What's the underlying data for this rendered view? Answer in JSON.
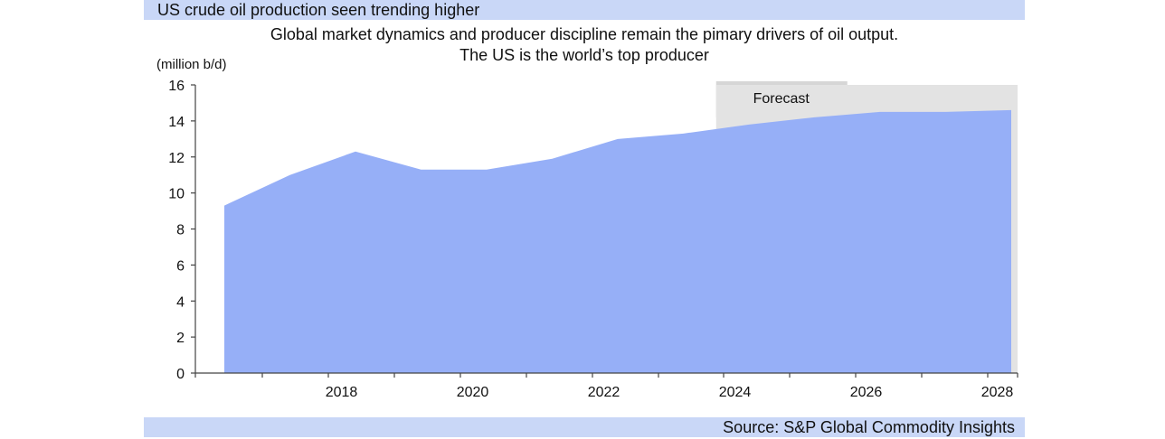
{
  "header": {
    "title": "US crude oil production seen trending higher",
    "subtitle_line1": "Global market dynamics and producer discipline remain the pimary drivers of oil output.",
    "subtitle_line2": "The US is the world’s top producer",
    "unit_label": "(million b/d)"
  },
  "footer": {
    "source": "Source: S&P Global Commodity Insights"
  },
  "colors": {
    "area_fill": "#96aff7",
    "forecast_shade": "#e3e3e3",
    "title_bar": "#c9d7f7"
  },
  "chart_data": {
    "type": "area",
    "x": [
      2017,
      2018,
      2019,
      2020,
      2021,
      2022,
      2023,
      2024,
      2025,
      2026,
      2027,
      2028,
      2029
    ],
    "series": [
      {
        "values": [
          9.3,
          11.0,
          12.3,
          11.3,
          11.3,
          11.9,
          13.0,
          13.3,
          13.8,
          14.2,
          14.5,
          14.5,
          14.6
        ]
      }
    ],
    "x_tick_labels": [
      "2018",
      "2020",
      "2022",
      "2024",
      "2026",
      "2028"
    ],
    "y_tick_labels": [
      "0",
      "2",
      "4",
      "6",
      "8",
      "10",
      "12",
      "14",
      "16"
    ],
    "ylim": [
      0,
      16
    ],
    "forecast_label": "Forecast",
    "forecast_start": 2024.5,
    "xlabel": "",
    "ylabel": "(million b/d)",
    "grid": false
  }
}
